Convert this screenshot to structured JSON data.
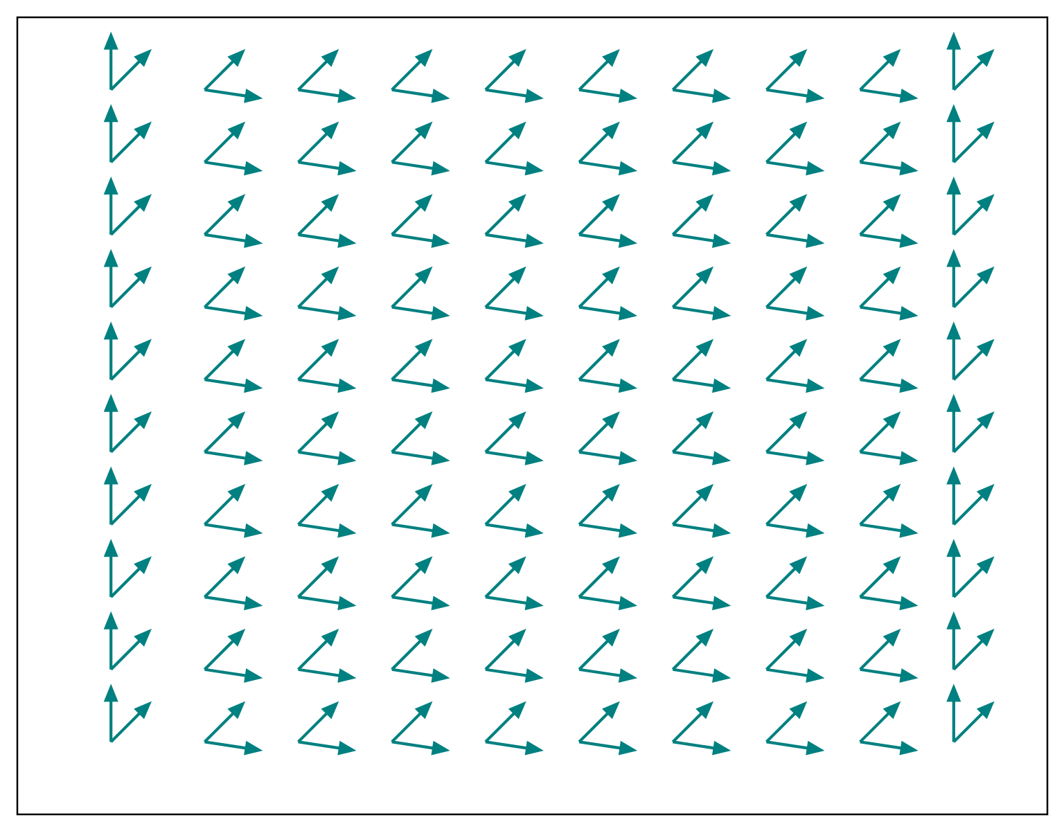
{
  "chart_data": {
    "type": "quiver",
    "title": "",
    "xlabel": "",
    "ylabel": "",
    "axes_visible": false,
    "grid": false,
    "legend": "none",
    "x": [
      -4,
      -3,
      -2,
      -1,
      0,
      1,
      2,
      3,
      4,
      5
    ],
    "y": [
      0,
      1,
      2,
      3,
      4,
      5,
      6,
      7,
      8,
      9
    ],
    "xlim": [
      -5,
      6
    ],
    "ylim": [
      -1,
      10
    ],
    "series": [
      {
        "color": "#008080",
        "columns": [
          {
            "x": -4,
            "vector": [
              0,
              1
            ]
          },
          {
            "x": -3,
            "vector": [
              1,
              -0.15
            ]
          },
          {
            "x": -2,
            "vector": [
              1,
              -0.15
            ]
          },
          {
            "x": -1,
            "vector": [
              1,
              -0.15
            ]
          },
          {
            "x": 0,
            "vector": [
              1,
              -0.15
            ]
          },
          {
            "x": 1,
            "vector": [
              1,
              -0.15
            ]
          },
          {
            "x": 2,
            "vector": [
              1,
              -0.15
            ]
          },
          {
            "x": 3,
            "vector": [
              1,
              -0.15
            ]
          },
          {
            "x": 4,
            "vector": [
              1,
              -0.15
            ]
          },
          {
            "x": 5,
            "vector": [
              0,
              1
            ]
          }
        ]
      },
      {
        "color": "#008080",
        "columns": [
          {
            "x": -4,
            "vector": [
              0.7,
              0.7
            ]
          },
          {
            "x": -3,
            "vector": [
              0.7,
              0.7
            ]
          },
          {
            "x": -2,
            "vector": [
              0.7,
              0.7
            ]
          },
          {
            "x": -1,
            "vector": [
              0.7,
              0.7
            ]
          },
          {
            "x": 0,
            "vector": [
              0.7,
              0.7
            ]
          },
          {
            "x": 1,
            "vector": [
              0.7,
              0.7
            ]
          },
          {
            "x": 2,
            "vector": [
              0.7,
              0.7
            ]
          },
          {
            "x": 3,
            "vector": [
              0.7,
              0.7
            ]
          },
          {
            "x": 4,
            "vector": [
              0.7,
              0.7
            ]
          },
          {
            "x": 5,
            "vector": [
              0.7,
              0.7
            ]
          }
        ]
      }
    ]
  }
}
